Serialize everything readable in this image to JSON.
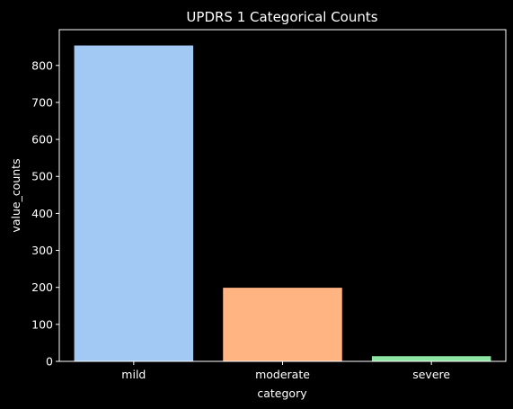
{
  "chart_data": {
    "type": "bar",
    "title": "UPDRS 1 Categorical Counts",
    "xlabel": "category",
    "ylabel": "value_counts",
    "categories": [
      "mild",
      "moderate",
      "severe"
    ],
    "values": [
      854,
      199,
      14
    ],
    "colors": [
      "#a1c9f4",
      "#ffb482",
      "#8de5a1"
    ],
    "ylim": [
      0,
      896.7
    ],
    "yticks": [
      0,
      100,
      200,
      300,
      400,
      500,
      600,
      700,
      800
    ],
    "grid": false,
    "legend": "none",
    "background": "#000000",
    "foreground": "#ffffff"
  }
}
